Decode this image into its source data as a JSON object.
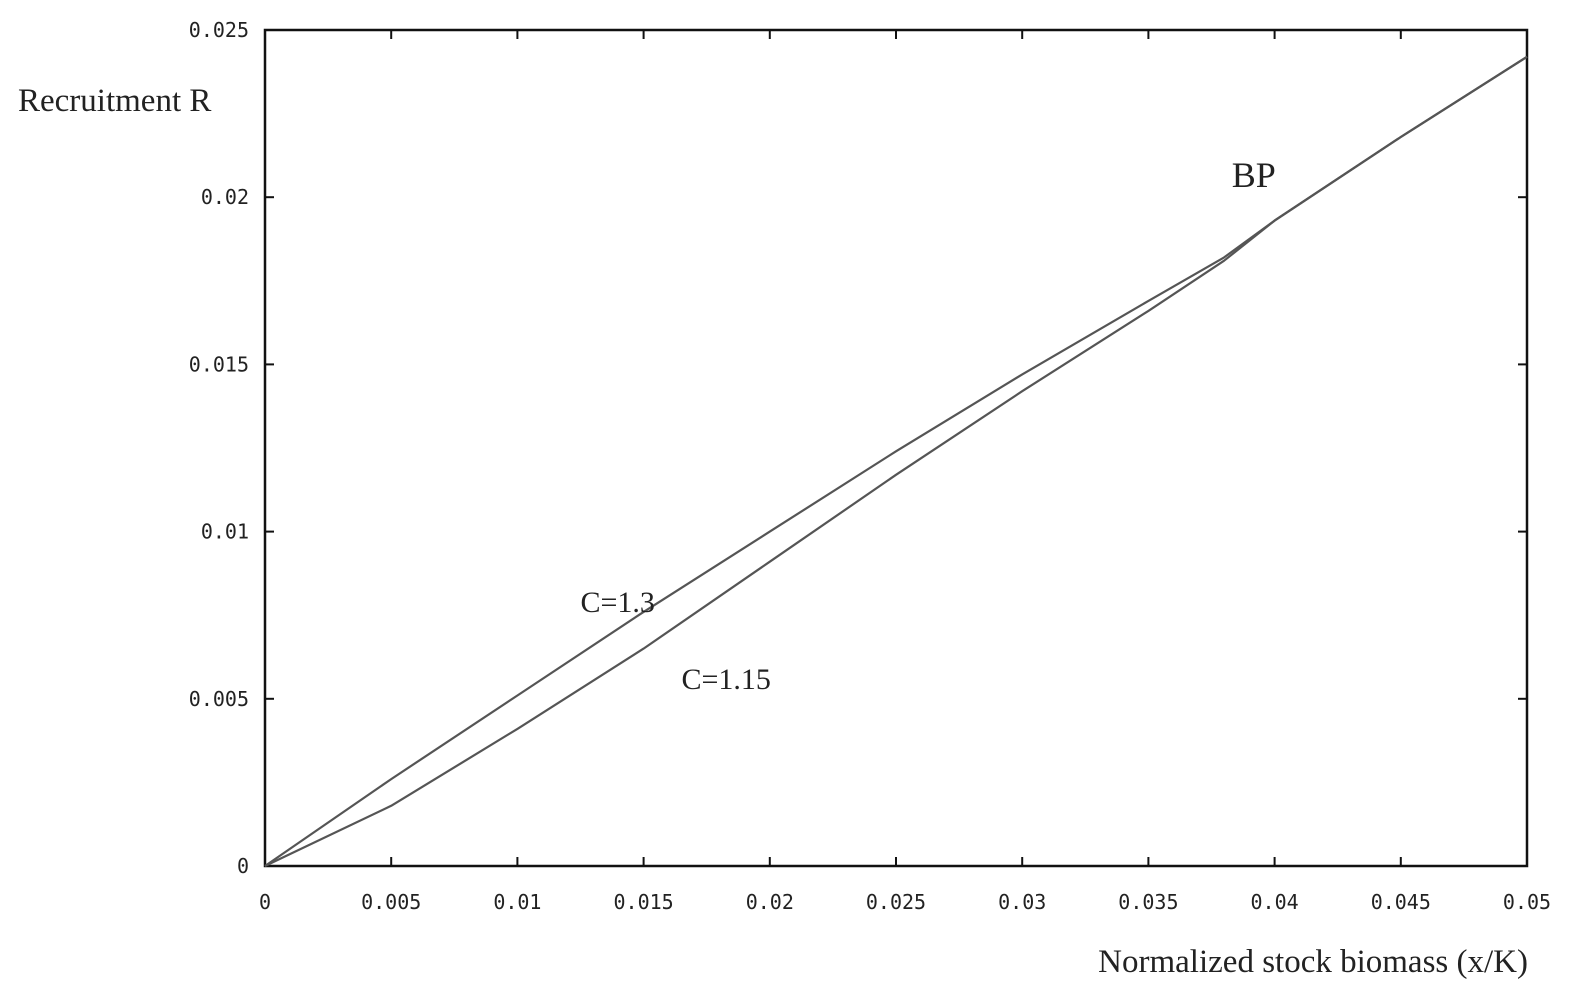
{
  "chart_data": {
    "type": "line",
    "title": "",
    "xlabel": "Normalized stock biomass (x/K)",
    "ylabel": "Recruitment R",
    "xlim": [
      0,
      0.05
    ],
    "ylim": [
      0,
      0.025
    ],
    "x_ticks": [
      0,
      0.005,
      0.01,
      0.015,
      0.02,
      0.025,
      0.03,
      0.035,
      0.04,
      0.045,
      0.05
    ],
    "x_tick_labels": [
      "0",
      "0.005",
      "0.01",
      "0.015",
      "0.02",
      "0.025",
      "0.03",
      "0.035",
      "0.04",
      "0.045",
      "0.05"
    ],
    "y_ticks": [
      0,
      0.005,
      0.01,
      0.015,
      0.02,
      0.025
    ],
    "y_tick_labels": [
      "0",
      "0.005",
      "0.01",
      "0.015",
      "0.02",
      "0.025"
    ],
    "grid": false,
    "legend": "none",
    "line_color": "#555555",
    "series": [
      {
        "label": "C=1.3",
        "x": [
          0,
          0.005,
          0.01,
          0.015,
          0.02,
          0.025,
          0.03,
          0.035,
          0.038,
          0.04,
          0.045,
          0.05
        ],
        "y": [
          0,
          0.0026,
          0.0051,
          0.0076,
          0.01,
          0.0124,
          0.0147,
          0.0169,
          0.0182,
          0.0193,
          0.0218,
          0.0242
        ]
      },
      {
        "label": "C=1.15",
        "x": [
          0,
          0.005,
          0.01,
          0.015,
          0.02,
          0.025,
          0.03,
          0.035,
          0.038,
          0.04,
          0.045,
          0.05
        ],
        "y": [
          0,
          0.0018,
          0.0041,
          0.0065,
          0.0091,
          0.0117,
          0.0142,
          0.0166,
          0.0181,
          0.0193,
          0.0218,
          0.0242
        ]
      }
    ],
    "annotations": [
      {
        "text": "C=1.3",
        "x": 0.0125,
        "y": 0.0076,
        "size": 30
      },
      {
        "text": "C=1.15",
        "x": 0.0165,
        "y": 0.0053,
        "size": 30
      },
      {
        "text": "BP",
        "x": 0.0383,
        "y": 0.0203,
        "size": 36
      }
    ]
  }
}
